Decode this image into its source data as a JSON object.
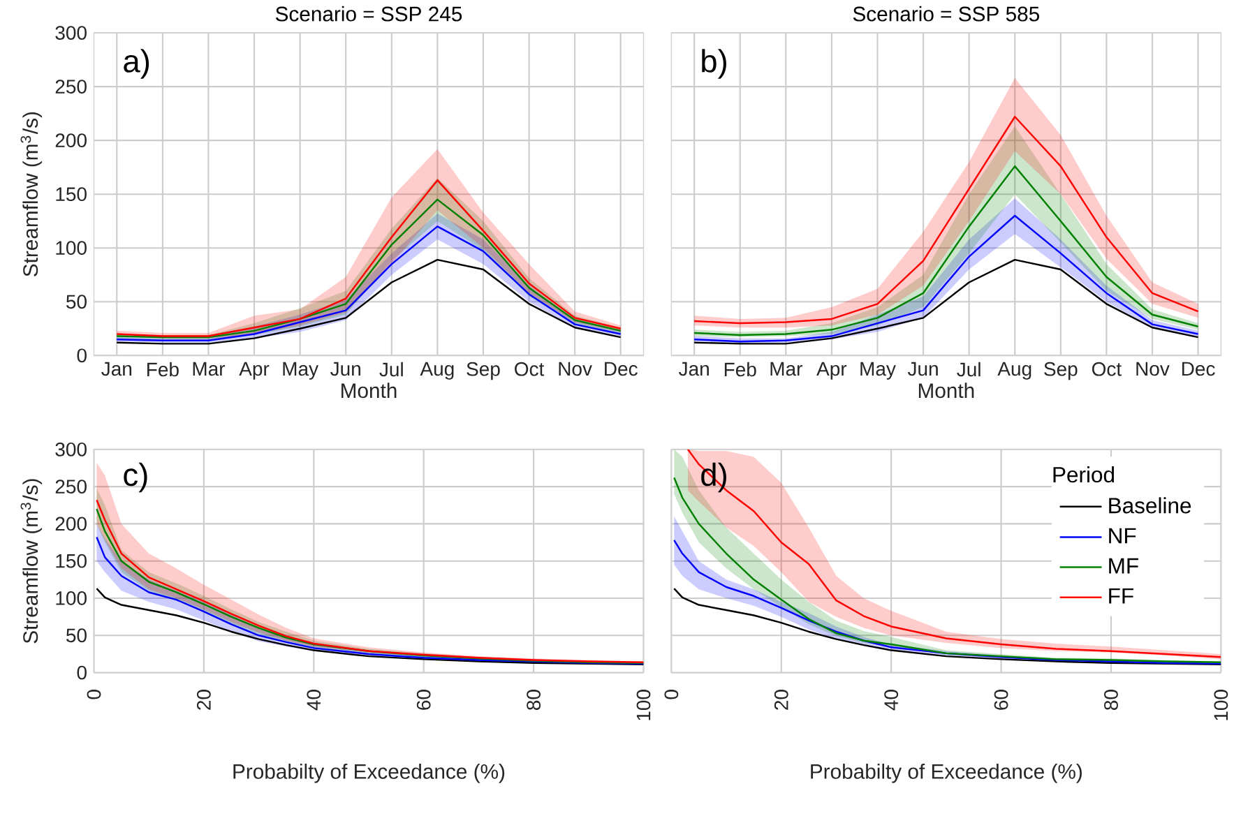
{
  "chart_data": [
    {
      "type": "line",
      "title": "Scenario = SSP 245",
      "xlabel": "Month",
      "ylabel": "Streamflow (m$^{3}$/s)",
      "annotations": [
        "a)"
      ],
      "categories": [
        "Jan",
        "Feb",
        "Mar",
        "Apr",
        "May",
        "Jun",
        "Jul",
        "Aug",
        "Sep",
        "Oct",
        "Nov",
        "Dec"
      ],
      "ylim": [
        0,
        300
      ],
      "yticks": [
        0,
        50,
        100,
        150,
        200,
        250,
        300
      ],
      "grid": true,
      "series": [
        {
          "color": "#000000",
          "values": [
            12,
            11,
            11,
            16,
            25,
            35,
            68,
            89,
            80,
            48,
            26,
            17
          ]
        },
        {
          "color": "#0000ff",
          "values": [
            15,
            14,
            14,
            20,
            31,
            42,
            85,
            120,
            97,
            57,
            29,
            20
          ],
          "lower": [
            13,
            12,
            12,
            16,
            22,
            33,
            75,
            108,
            85,
            50,
            26,
            18
          ],
          "upper": [
            17,
            16,
            16,
            27,
            38,
            52,
            95,
            132,
            108,
            65,
            33,
            23
          ]
        },
        {
          "color": "#008000",
          "values": [
            18,
            17,
            17,
            23,
            34,
            48,
            103,
            145,
            112,
            63,
            33,
            23
          ],
          "lower": [
            16,
            15,
            15,
            19,
            27,
            38,
            88,
            125,
            98,
            55,
            29,
            21
          ],
          "upper": [
            20,
            19,
            19,
            30,
            44,
            60,
            118,
            165,
            125,
            72,
            37,
            26
          ]
        },
        {
          "color": "#ff0000",
          "values": [
            20,
            18,
            18,
            26,
            34,
            53,
            110,
            163,
            116,
            67,
            35,
            25
          ],
          "lower": [
            18,
            16,
            16,
            20,
            28,
            40,
            85,
            135,
            100,
            58,
            31,
            22
          ],
          "upper": [
            23,
            21,
            21,
            37,
            43,
            73,
            147,
            192,
            133,
            85,
            41,
            28
          ]
        }
      ]
    },
    {
      "type": "line",
      "title": "Scenario = SSP 585",
      "xlabel": "Month",
      "annotations": [
        "b)"
      ],
      "tick_labels": "x",
      "categories": [
        "Jan",
        "Feb",
        "Mar",
        "Apr",
        "May",
        "Jun",
        "Jul",
        "Aug",
        "Sep",
        "Oct",
        "Nov",
        "Dec"
      ],
      "ylim": [
        0,
        300
      ],
      "yticks": [
        0,
        50,
        100,
        150,
        200,
        250,
        300
      ],
      "grid": true,
      "series": [
        {
          "color": "#000000",
          "values": [
            12,
            11,
            11,
            16,
            25,
            35,
            68,
            89,
            80,
            48,
            26,
            17
          ]
        },
        {
          "color": "#0000ff",
          "values": [
            15,
            13,
            14,
            18,
            30,
            42,
            92,
            130,
            95,
            58,
            29,
            20
          ],
          "lower": [
            13,
            11,
            12,
            15,
            22,
            35,
            80,
            113,
            82,
            50,
            26,
            17
          ],
          "upper": [
            18,
            16,
            16,
            22,
            38,
            55,
            108,
            146,
            108,
            65,
            33,
            23
          ]
        },
        {
          "color": "#008000",
          "values": [
            21,
            19,
            20,
            24,
            35,
            58,
            120,
            176,
            125,
            73,
            38,
            27
          ],
          "lower": [
            18,
            17,
            18,
            20,
            28,
            45,
            95,
            150,
            105,
            60,
            34,
            24
          ],
          "upper": [
            24,
            22,
            23,
            30,
            45,
            75,
            150,
            213,
            150,
            85,
            43,
            30
          ]
        },
        {
          "color": "#ff0000",
          "values": [
            32,
            30,
            31,
            34,
            48,
            88,
            155,
            222,
            176,
            110,
            58,
            41
          ],
          "lower": [
            28,
            26,
            26,
            28,
            38,
            65,
            125,
            190,
            150,
            90,
            48,
            35
          ],
          "upper": [
            37,
            34,
            35,
            45,
            62,
            115,
            180,
            258,
            205,
            130,
            68,
            48
          ]
        }
      ]
    },
    {
      "type": "line",
      "xlabel": "Probabilty of Exceedance (%)",
      "ylabel": "Streamflow (m$^{3}$/s)",
      "annotations": [
        "c)"
      ],
      "x": [
        0.5,
        2,
        5,
        10,
        15,
        20,
        25,
        30,
        35,
        40,
        50,
        60,
        70,
        80,
        90,
        100
      ],
      "xlim": [
        0,
        100
      ],
      "xticks": [
        0,
        20,
        40,
        60,
        80,
        100
      ],
      "ylim": [
        0,
        300
      ],
      "yticks": [
        0,
        50,
        100,
        150,
        200,
        250,
        300
      ],
      "grid": true,
      "series": [
        {
          "color": "#000000",
          "values": [
            113,
            101,
            91,
            84,
            77,
            67,
            55,
            45,
            37,
            30,
            22,
            18,
            15,
            13,
            12,
            11
          ]
        },
        {
          "color": "#0000ff",
          "values": [
            182,
            155,
            130,
            108,
            98,
            82,
            65,
            50,
            41,
            33,
            25,
            20,
            17,
            15,
            13,
            12
          ],
          "lower": [
            150,
            135,
            110,
            95,
            85,
            70,
            55,
            42,
            35,
            29,
            22,
            18,
            15,
            13,
            12,
            10
          ],
          "upper": [
            200,
            180,
            150,
            125,
            110,
            95,
            78,
            60,
            48,
            40,
            30,
            24,
            21,
            18,
            16,
            14
          ]
        },
        {
          "color": "#008000",
          "values": [
            220,
            190,
            150,
            122,
            108,
            92,
            75,
            60,
            47,
            38,
            29,
            23,
            19,
            16,
            14,
            13
          ],
          "lower": [
            200,
            175,
            135,
            110,
            97,
            82,
            65,
            52,
            41,
            33,
            26,
            21,
            17,
            14,
            13,
            12
          ],
          "upper": [
            248,
            225,
            165,
            135,
            120,
            103,
            85,
            68,
            55,
            43,
            32,
            26,
            21,
            18,
            16,
            14
          ]
        },
        {
          "color": "#ff0000",
          "values": [
            232,
            205,
            160,
            128,
            112,
            96,
            79,
            63,
            49,
            39,
            29,
            24,
            20,
            17,
            15,
            14
          ],
          "lower": [
            200,
            178,
            140,
            112,
            100,
            85,
            68,
            54,
            43,
            35,
            27,
            22,
            18,
            16,
            14,
            12
          ],
          "upper": [
            282,
            265,
            200,
            160,
            140,
            118,
            98,
            78,
            60,
            46,
            34,
            27,
            22,
            19,
            17,
            15
          ]
        }
      ]
    },
    {
      "type": "line",
      "xlabel": "Probabilty of Exceedance (%)",
      "annotations": [
        "d)"
      ],
      "tick_labels": "x",
      "legend": "top right",
      "legend_title": "Period",
      "x": [
        0.5,
        2,
        5,
        10,
        15,
        20,
        25,
        30,
        35,
        40,
        50,
        60,
        70,
        80,
        90,
        100
      ],
      "xlim": [
        0,
        100
      ],
      "xticks": [
        0,
        20,
        40,
        60,
        80,
        100
      ],
      "ylim": [
        0,
        300
      ],
      "yticks": [
        0,
        50,
        100,
        150,
        200,
        250,
        300
      ],
      "grid": true,
      "series": [
        {
          "name": "Baseline",
          "color": "#000000",
          "values": [
            113,
            101,
            91,
            84,
            77,
            67,
            55,
            45,
            37,
            30,
            22,
            18,
            15,
            13,
            12,
            11
          ]
        },
        {
          "name": "NF",
          "color": "#0000ff",
          "values": [
            178,
            160,
            135,
            115,
            103,
            87,
            70,
            55,
            43,
            34,
            26,
            21,
            17,
            15,
            13,
            12
          ],
          "lower": [
            145,
            130,
            112,
            100,
            90,
            75,
            58,
            45,
            37,
            30,
            23,
            19,
            16,
            14,
            12,
            11
          ],
          "upper": [
            210,
            190,
            150,
            125,
            112,
            95,
            80,
            62,
            48,
            38,
            29,
            23,
            19,
            16,
            15,
            13
          ]
        },
        {
          "name": "MF",
          "color": "#008000",
          "values": [
            262,
            235,
            200,
            160,
            125,
            98,
            72,
            53,
            43,
            38,
            26,
            22,
            18,
            17,
            15,
            14
          ],
          "lower": [
            240,
            215,
            175,
            140,
            112,
            88,
            65,
            49,
            40,
            35,
            24,
            20,
            17,
            15,
            14,
            13
          ],
          "upper": [
            300,
            290,
            245,
            195,
            160,
            125,
            95,
            70,
            56,
            48,
            30,
            25,
            20,
            19,
            17,
            15
          ]
        },
        {
          "name": "FF",
          "color": "#ff0000",
          "x": [
            3,
            5,
            10,
            15,
            20,
            25,
            30,
            35,
            40,
            50,
            60,
            70,
            80,
            90,
            100
          ],
          "values": [
            300,
            280,
            245,
            217,
            175,
            146,
            97,
            76,
            62,
            46,
            38,
            32,
            29,
            25,
            21
          ],
          "lower": [
            245,
            230,
            195,
            170,
            135,
            95,
            75,
            60,
            50,
            40,
            33,
            29,
            27,
            23,
            18
          ],
          "upper": [
            300,
            298,
            298,
            290,
            255,
            195,
            130,
            100,
            83,
            55,
            45,
            39,
            35,
            30,
            25
          ]
        }
      ]
    }
  ]
}
